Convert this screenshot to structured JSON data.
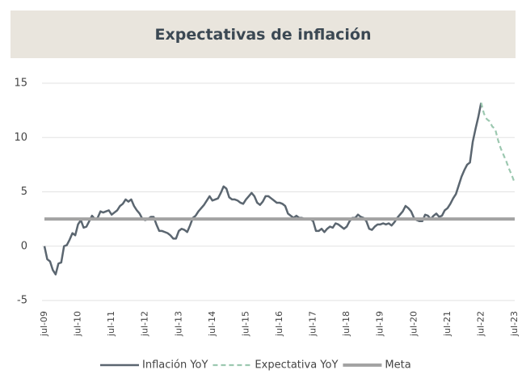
{
  "chart_data": {
    "type": "line",
    "title": "Expectativas de inflación",
    "categories": [
      "jul-09",
      null,
      null,
      null,
      null,
      null,
      null,
      null,
      null,
      null,
      null,
      null,
      "jul-10",
      null,
      null,
      null,
      null,
      null,
      null,
      null,
      null,
      null,
      null,
      null,
      "jul-11",
      null,
      null,
      null,
      null,
      null,
      null,
      null,
      null,
      null,
      null,
      null,
      "jul-12",
      null,
      null,
      null,
      null,
      null,
      null,
      null,
      null,
      null,
      null,
      null,
      "jul-13",
      null,
      null,
      null,
      null,
      null,
      null,
      null,
      null,
      null,
      null,
      null,
      "jul-14",
      null,
      null,
      null,
      null,
      null,
      null,
      null,
      null,
      null,
      null,
      null,
      "jul-15",
      null,
      null,
      null,
      null,
      null,
      null,
      null,
      null,
      null,
      null,
      null,
      "jul-16",
      null,
      null,
      null,
      null,
      null,
      null,
      null,
      null,
      null,
      null,
      null,
      "jul-17",
      null,
      null,
      null,
      null,
      null,
      null,
      null,
      null,
      null,
      null,
      null,
      "jul-18",
      null,
      null,
      null,
      null,
      null,
      null,
      null,
      null,
      null,
      null,
      null,
      "jul-19",
      null,
      null,
      null,
      null,
      null,
      null,
      null,
      null,
      null,
      null,
      null,
      "jul-20",
      null,
      null,
      null,
      null,
      null,
      null,
      null,
      null,
      null,
      null,
      null,
      "jul-21",
      null,
      null,
      null,
      null,
      null,
      null,
      null,
      null,
      null,
      null,
      null,
      "jul-22",
      null,
      null,
      null,
      null,
      null,
      null,
      null,
      null,
      null,
      null,
      null,
      "jul-23"
    ],
    "series": [
      {
        "name": "Inflación YoY",
        "color": "#5b6670",
        "style": "solid",
        "values": [
          0,
          -1.2,
          -1.4,
          -2.2,
          -2.6,
          -1.6,
          -1.5,
          0,
          0.1,
          0.6,
          1.2,
          1.0,
          2.0,
          2.4,
          1.7,
          1.8,
          2.3,
          2.8,
          2.5,
          2.6,
          3.2,
          3.1,
          3.2,
          3.3,
          2.9,
          3.1,
          3.3,
          3.7,
          3.9,
          4.3,
          4.1,
          4.3,
          3.7,
          3.3,
          3.0,
          2.5,
          2.4,
          2.5,
          2.7,
          2.7,
          2.0,
          1.4,
          1.4,
          1.3,
          1.2,
          1.0,
          0.7,
          0.7,
          1.4,
          1.6,
          1.5,
          1.3,
          1.9,
          2.6,
          2.8,
          3.2,
          3.5,
          3.8,
          4.2,
          4.6,
          4.2,
          4.3,
          4.4,
          4.9,
          5.5,
          5.3,
          4.5,
          4.3,
          4.3,
          4.2,
          4.0,
          3.9,
          4.3,
          4.6,
          4.9,
          4.6,
          4.0,
          3.8,
          4.1,
          4.6,
          4.6,
          4.4,
          4.2,
          4.0,
          4.0,
          3.9,
          3.7,
          3.0,
          2.8,
          2.6,
          2.8,
          2.6,
          2.6,
          2.5,
          2.5,
          2.5,
          2.3,
          1.4,
          1.4,
          1.6,
          1.3,
          1.6,
          1.8,
          1.7,
          2.1,
          2.0,
          1.8,
          1.6,
          1.8,
          2.3,
          2.6,
          2.6,
          2.9,
          2.7,
          2.6,
          2.3,
          1.6,
          1.5,
          1.8,
          2.0,
          2.0,
          2.1,
          2.0,
          2.1,
          1.9,
          2.2,
          2.6,
          2.9,
          3.2,
          3.7,
          3.5,
          3.2,
          2.6,
          2.4,
          2.3,
          2.3,
          2.9,
          2.8,
          2.5,
          2.8,
          3.0,
          2.7,
          2.8,
          3.3,
          3.5,
          3.9,
          4.4,
          4.8,
          5.6,
          6.4,
          7.0,
          7.5,
          7.7,
          9.6,
          10.8,
          11.9,
          13.2,
          null,
          null,
          null,
          null,
          null,
          null,
          null,
          null,
          null,
          null,
          null,
          null
        ]
      },
      {
        "name": "Expectativa YoY",
        "color": "#9cc8b0",
        "style": "dashed",
        "values": [
          null,
          null,
          null,
          null,
          null,
          null,
          null,
          null,
          null,
          null,
          null,
          null,
          null,
          null,
          null,
          null,
          null,
          null,
          null,
          null,
          null,
          null,
          null,
          null,
          null,
          null,
          null,
          null,
          null,
          null,
          null,
          null,
          null,
          null,
          null,
          null,
          null,
          null,
          null,
          null,
          null,
          null,
          null,
          null,
          null,
          null,
          null,
          null,
          null,
          null,
          null,
          null,
          null,
          null,
          null,
          null,
          null,
          null,
          null,
          null,
          null,
          null,
          null,
          null,
          null,
          null,
          null,
          null,
          null,
          null,
          null,
          null,
          null,
          null,
          null,
          null,
          null,
          null,
          null,
          null,
          null,
          null,
          null,
          null,
          null,
          null,
          null,
          null,
          null,
          null,
          null,
          null,
          null,
          null,
          null,
          null,
          null,
          null,
          null,
          null,
          null,
          null,
          null,
          null,
          null,
          null,
          null,
          null,
          null,
          null,
          null,
          null,
          null,
          null,
          null,
          null,
          null,
          null,
          null,
          null,
          null,
          null,
          null,
          null,
          null,
          null,
          null,
          null,
          null,
          null,
          null,
          null,
          null,
          null,
          null,
          null,
          null,
          null,
          null,
          null,
          null,
          null,
          null,
          null,
          null,
          null,
          null,
          null,
          null,
          null,
          null,
          null,
          null,
          null,
          null,
          null,
          13.2,
          12.2,
          11.7,
          11.5,
          11.0,
          10.8,
          9.8,
          9.0,
          8.4,
          7.8,
          7.1,
          6.5,
          5.8
        ]
      },
      {
        "name": "Meta",
        "color": "#a3a3a3",
        "style": "thick",
        "values": [
          2.5,
          2.5,
          2.5,
          2.5,
          2.5,
          2.5,
          2.5,
          2.5,
          2.5,
          2.5,
          2.5,
          2.5,
          2.5,
          2.5,
          2.5,
          2.5,
          2.5,
          2.5,
          2.5,
          2.5,
          2.5,
          2.5,
          2.5,
          2.5,
          2.5,
          2.5,
          2.5,
          2.5,
          2.5,
          2.5,
          2.5,
          2.5,
          2.5,
          2.5,
          2.5,
          2.5,
          2.5,
          2.5,
          2.5,
          2.5,
          2.5,
          2.5,
          2.5,
          2.5,
          2.5,
          2.5,
          2.5,
          2.5,
          2.5,
          2.5,
          2.5,
          2.5,
          2.5,
          2.5,
          2.5,
          2.5,
          2.5,
          2.5,
          2.5,
          2.5,
          2.5,
          2.5,
          2.5,
          2.5,
          2.5,
          2.5,
          2.5,
          2.5,
          2.5,
          2.5,
          2.5,
          2.5,
          2.5,
          2.5,
          2.5,
          2.5,
          2.5,
          2.5,
          2.5,
          2.5,
          2.5,
          2.5,
          2.5,
          2.5,
          2.5,
          2.5,
          2.5,
          2.5,
          2.5,
          2.5,
          2.5,
          2.5,
          2.5,
          2.5,
          2.5,
          2.5,
          2.5,
          2.5,
          2.5,
          2.5,
          2.5,
          2.5,
          2.5,
          2.5,
          2.5,
          2.5,
          2.5,
          2.5,
          2.5,
          2.5,
          2.5,
          2.5,
          2.5,
          2.5,
          2.5,
          2.5,
          2.5,
          2.5,
          2.5,
          2.5,
          2.5,
          2.5,
          2.5,
          2.5,
          2.5,
          2.5,
          2.5,
          2.5,
          2.5,
          2.5,
          2.5,
          2.5,
          2.5,
          2.5,
          2.5,
          2.5,
          2.5,
          2.5,
          2.5,
          2.5,
          2.5,
          2.5,
          2.5,
          2.5,
          2.5,
          2.5,
          2.5,
          2.5,
          2.5,
          2.5,
          2.5,
          2.5,
          2.5,
          2.5,
          2.5,
          2.5,
          2.5,
          2.5,
          2.5,
          2.5,
          2.5,
          2.5,
          2.5,
          2.5,
          2.5,
          2.5,
          2.5,
          2.5,
          2.5
        ]
      }
    ],
    "ylim": [
      -5,
      15
    ],
    "yticks": [
      -5,
      0,
      5,
      10,
      15
    ],
    "grid": true,
    "legend": "bottom"
  }
}
